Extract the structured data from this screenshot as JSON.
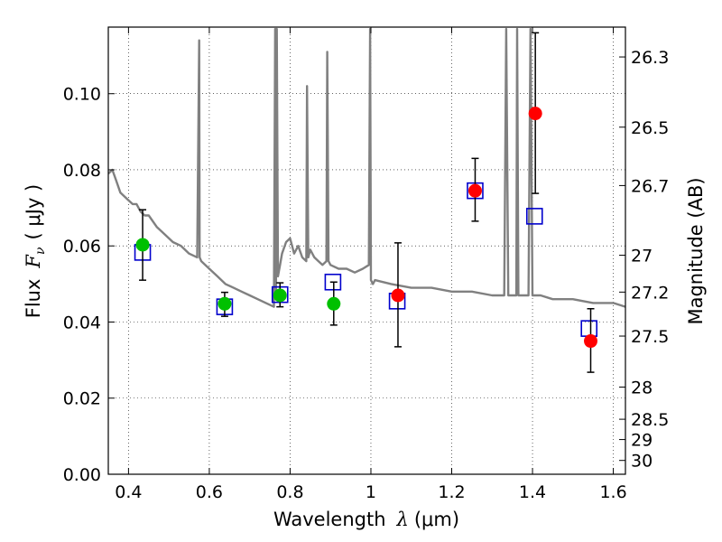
{
  "chart_data": {
    "type": "scatter",
    "xlabel": "Wavelength",
    "xlabel_symbol": "λ",
    "xlabel_unit": "(μm)",
    "ylabel": "Flux",
    "ylabel_symbol": "F",
    "ylabel_subscript": "ν",
    "ylabel_unit": "( μJy )",
    "y2label": "Magnitude (AB)",
    "xlim": [
      0.35,
      1.63
    ],
    "ylim": [
      0.0,
      0.1175
    ],
    "grid": true,
    "x_ticks": [
      "0.4",
      "0.6",
      "0.8",
      "1",
      "1.2",
      "1.4",
      "1.6"
    ],
    "x_tick_values": [
      0.4,
      0.6,
      0.8,
      1.0,
      1.2,
      1.4,
      1.6
    ],
    "y_ticks": [
      "0.00",
      "0.02",
      "0.04",
      "0.06",
      "0.08",
      "0.10"
    ],
    "y_tick_values": [
      0.0,
      0.02,
      0.04,
      0.06,
      0.08,
      0.1
    ],
    "y2_ticks": [
      "26.3",
      "26.5",
      "26.7",
      "27",
      "27.2",
      "27.5",
      "28",
      "28.5",
      "29",
      "30"
    ],
    "y2_tick_values": [
      26.3,
      26.5,
      26.7,
      27.0,
      27.2,
      27.5,
      28.0,
      28.5,
      29.0,
      30.0
    ],
    "colors": {
      "model": "#808080",
      "detections": "#00c000",
      "upper": "#ff0000",
      "model_flux": "#0000cc",
      "errorbar": "#000000"
    },
    "series": [
      {
        "style": "model-spectrum-line",
        "x": [
          0.35,
          0.36,
          0.37,
          0.38,
          0.39,
          0.4,
          0.41,
          0.42,
          0.43,
          0.44,
          0.45,
          0.47,
          0.49,
          0.51,
          0.53,
          0.55,
          0.57,
          0.575,
          0.576,
          0.58,
          0.6,
          0.62,
          0.64,
          0.66,
          0.68,
          0.7,
          0.72,
          0.74,
          0.76,
          0.763,
          0.765,
          0.767,
          0.77,
          0.775,
          0.78,
          0.79,
          0.8,
          0.81,
          0.82,
          0.83,
          0.84,
          0.842,
          0.845,
          0.85,
          0.86,
          0.87,
          0.88,
          0.89,
          0.892,
          0.895,
          0.9,
          0.92,
          0.94,
          0.96,
          0.98,
          0.995,
          0.998,
          1.0,
          1.005,
          1.01,
          1.05,
          1.1,
          1.15,
          1.2,
          1.25,
          1.3,
          1.33,
          1.335,
          1.34,
          1.36,
          1.362,
          1.365,
          1.38,
          1.39,
          1.395,
          1.4,
          1.42,
          1.45,
          1.5,
          1.55,
          1.6,
          1.63
        ],
        "y": [
          0.079,
          0.08,
          0.077,
          0.074,
          0.073,
          0.072,
          0.071,
          0.071,
          0.069,
          0.068,
          0.068,
          0.065,
          0.063,
          0.061,
          0.06,
          0.058,
          0.057,
          0.114,
          0.057,
          0.056,
          0.054,
          0.052,
          0.05,
          0.049,
          0.048,
          0.047,
          0.046,
          0.045,
          0.044,
          0.117,
          0.047,
          0.117,
          0.052,
          0.055,
          0.058,
          0.061,
          0.062,
          0.058,
          0.06,
          0.057,
          0.056,
          0.102,
          0.057,
          0.059,
          0.057,
          0.056,
          0.055,
          0.056,
          0.111,
          0.056,
          0.055,
          0.054,
          0.054,
          0.053,
          0.054,
          0.055,
          0.117,
          0.051,
          0.05,
          0.051,
          0.05,
          0.049,
          0.049,
          0.048,
          0.048,
          0.047,
          0.047,
          0.117,
          0.047,
          0.047,
          0.117,
          0.047,
          0.047,
          0.047,
          0.117,
          0.047,
          0.047,
          0.046,
          0.046,
          0.045,
          0.045,
          0.044
        ]
      },
      {
        "style": "green-circles-with-errorbars",
        "x": [
          0.435,
          0.638,
          0.775,
          0.908
        ],
        "y": [
          0.0603,
          0.0448,
          0.047,
          0.0448
        ],
        "yerr_low": [
          0.051,
          0.0415,
          0.044,
          0.0392
        ],
        "yerr_high": [
          0.0695,
          0.0478,
          0.0503,
          0.0505
        ]
      },
      {
        "style": "red-circles-with-errorbars",
        "x": [
          1.067,
          1.258,
          1.407,
          1.544
        ],
        "y": [
          0.047,
          0.0745,
          0.0948,
          0.035
        ],
        "yerr_low": [
          0.0335,
          0.0665,
          0.0738,
          0.0268
        ],
        "yerr_high": [
          0.0608,
          0.083,
          0.116,
          0.0435
        ]
      },
      {
        "style": "blue-open-squares",
        "x": [
          0.435,
          0.638,
          0.775,
          0.906,
          1.065,
          1.258,
          1.405,
          1.54
        ],
        "y": [
          0.0583,
          0.044,
          0.0472,
          0.0505,
          0.0455,
          0.0745,
          0.0678,
          0.0383
        ]
      }
    ]
  }
}
